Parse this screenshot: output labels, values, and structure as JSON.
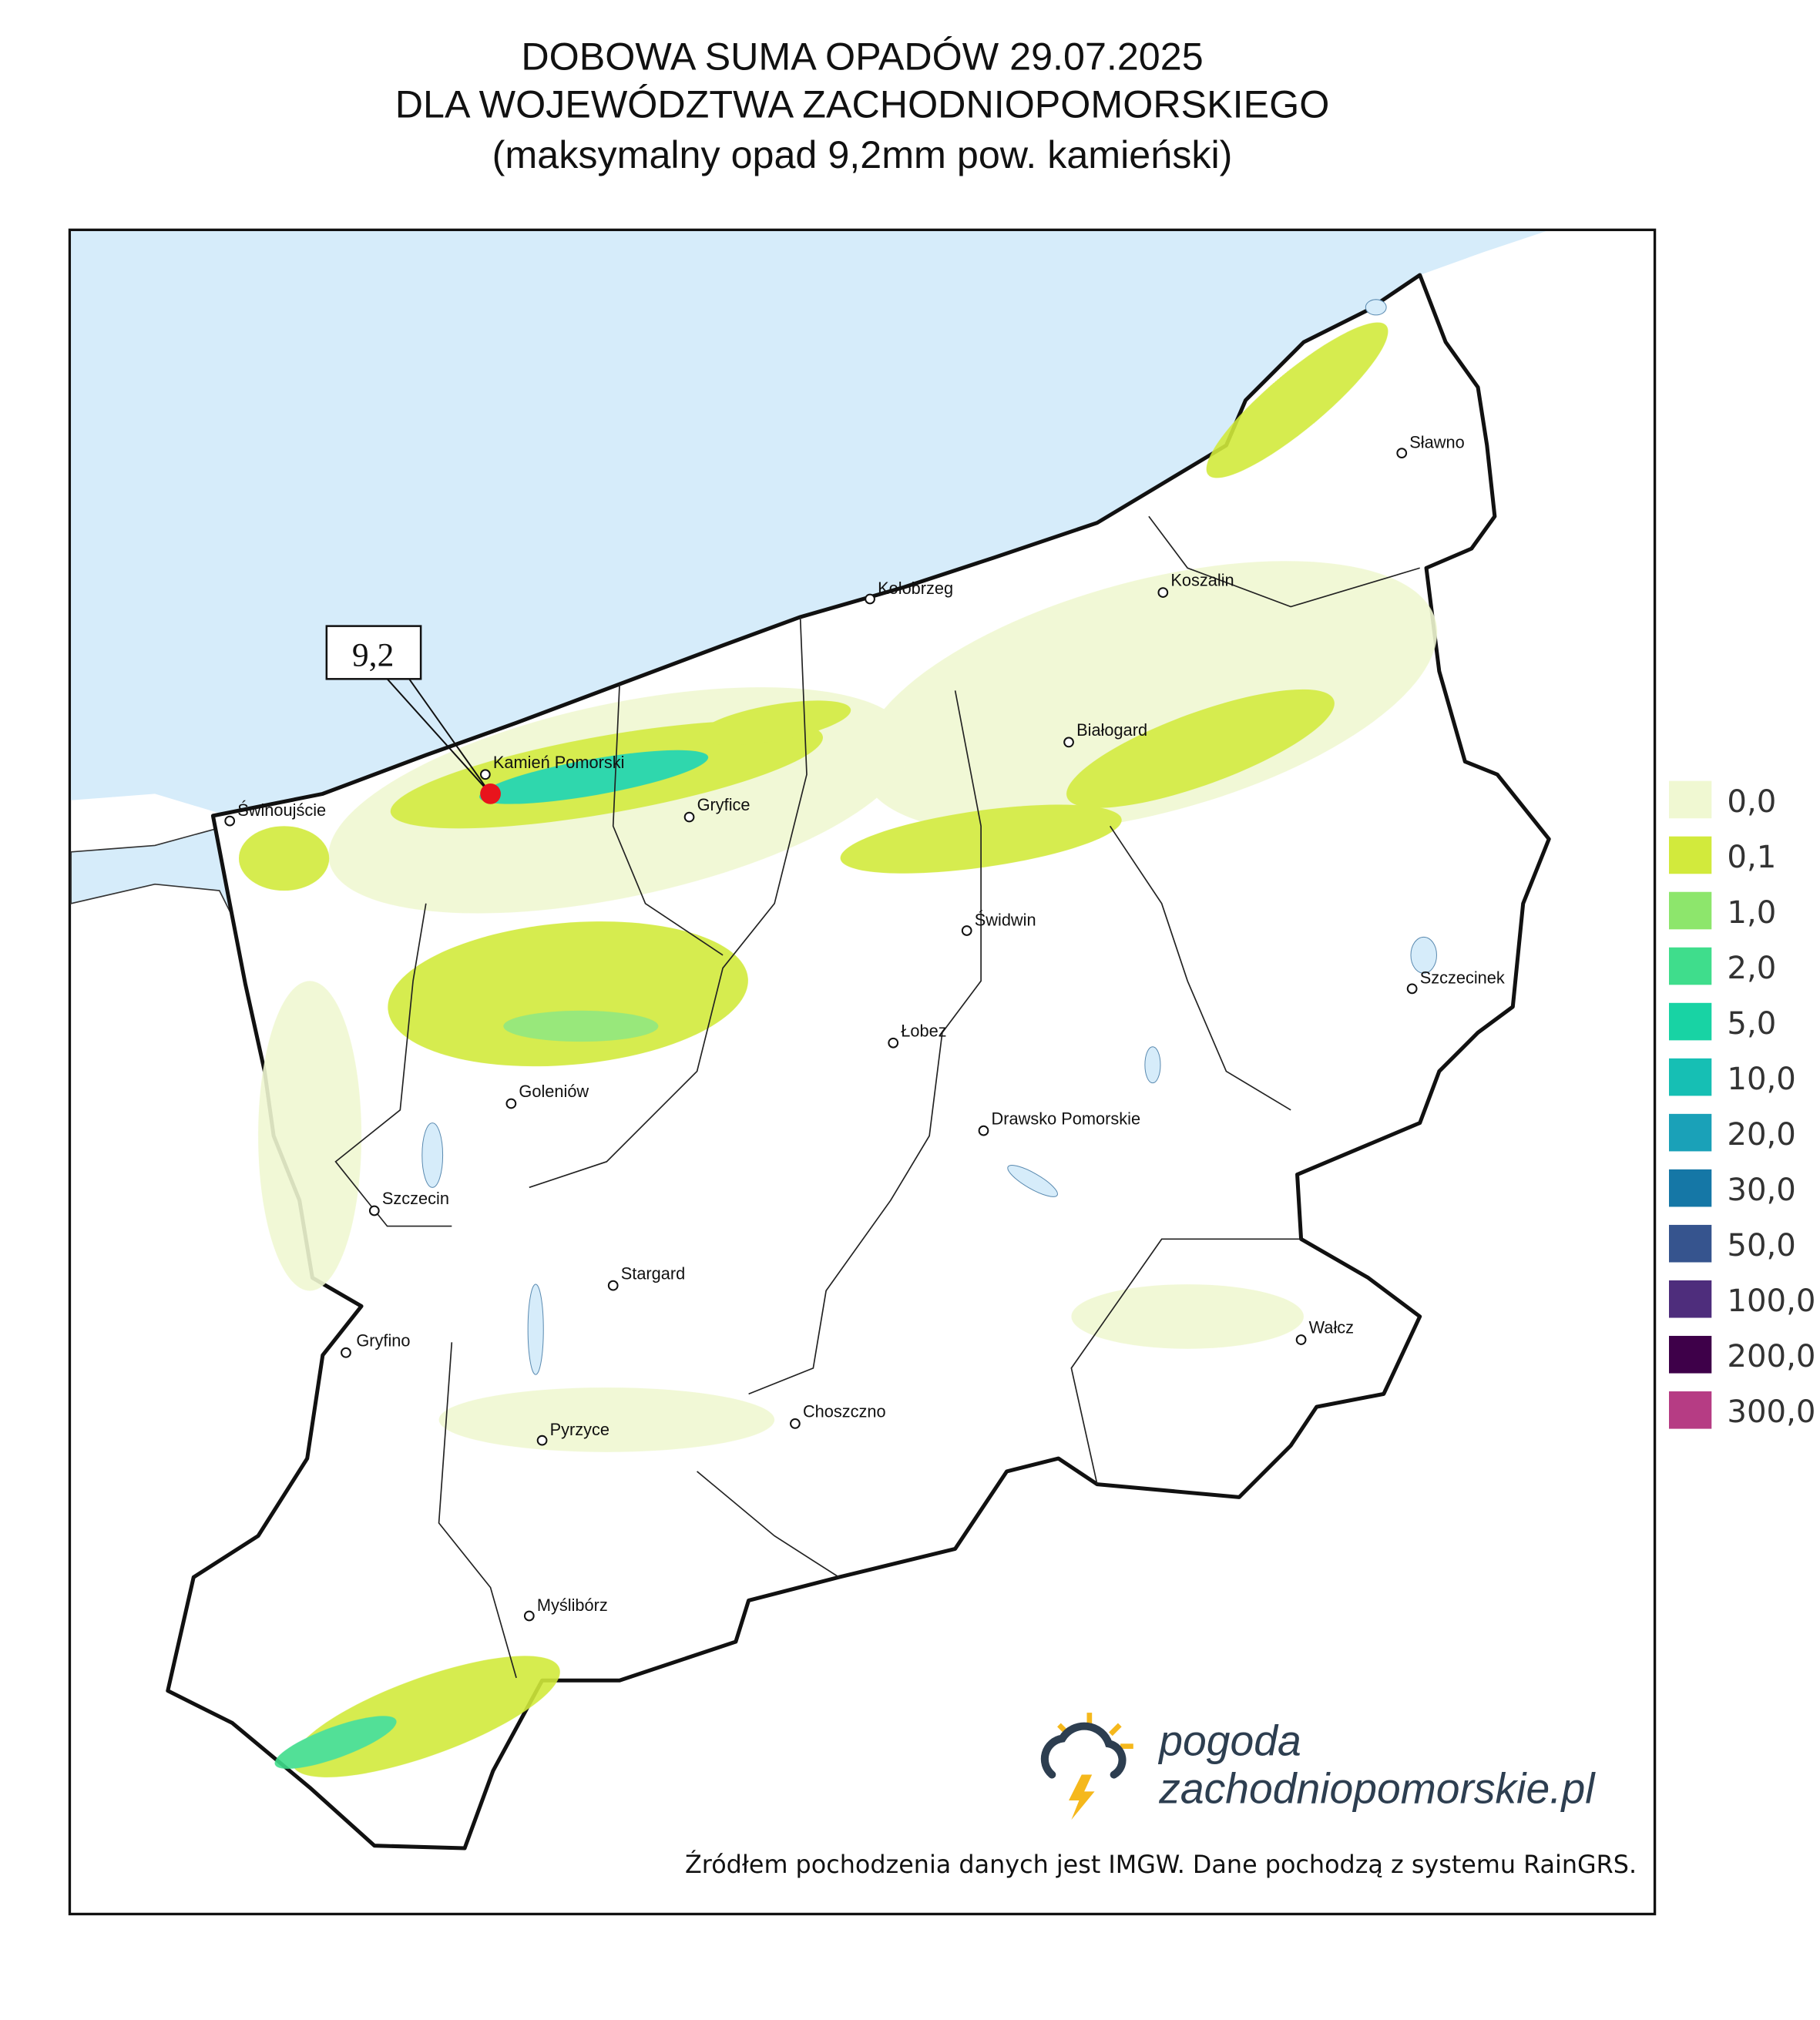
{
  "title": {
    "line1": "DOBOWA SUMA OPADÓW 29.07.2025",
    "line2": "DLA WOJEWÓDZTWA ZACHODNIOPOMORSKIEGO",
    "line3": "(maksymalny opad 9,2mm pow. kamieński)"
  },
  "max_annotation": "9,2",
  "cities": [
    "Sławno",
    "Koszalin",
    "Kołobrzeg",
    "Białogard",
    "Kamień Pomorski",
    "Gryfice",
    "Świnoujście",
    "Świdwin",
    "Szczecinek",
    "Łobez",
    "Goleniów",
    "Drawsko Pomorskie",
    "Szczecin",
    "Stargard",
    "Wałcz",
    "Gryfino",
    "Choszczno",
    "Pyrzyce",
    "Myślibórz"
  ],
  "legend": [
    {
      "label": "0,0",
      "color": "#f0f8d2"
    },
    {
      "label": "0,1",
      "color": "#d2ea3c"
    },
    {
      "label": "1,0",
      "color": "#8de66c"
    },
    {
      "label": "2,0",
      "color": "#3fdd8c"
    },
    {
      "label": "5,0",
      "color": "#18d3a4"
    },
    {
      "label": "10,0",
      "color": "#16bfb4"
    },
    {
      "label": "20,0",
      "color": "#1aa1b8"
    },
    {
      "label": "30,0",
      "color": "#1577a6"
    },
    {
      "label": "50,0",
      "color": "#36548e"
    },
    {
      "label": "100,0",
      "color": "#4e2d7c"
    },
    {
      "label": "200,0",
      "color": "#3e0049"
    },
    {
      "label": "300,0",
      "color": "#b63c84"
    }
  ],
  "logo": {
    "line1": "pogoda",
    "line2": "zachodniopomorskie.pl"
  },
  "source": "Źródłem pochodzenia danych jest IMGW. Dane pochodzą z systemu RainGRS."
}
